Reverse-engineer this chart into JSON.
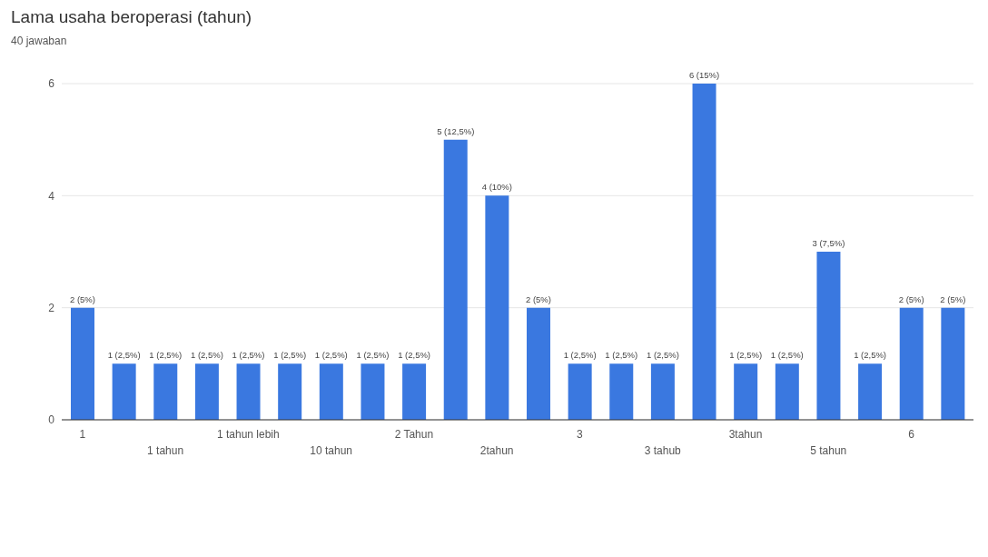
{
  "chart_data": {
    "type": "bar",
    "title": "Lama usaha beroperasi (tahun)",
    "subtitle": "40 jawaban",
    "categories": [
      "1",
      null,
      "1 tahun",
      null,
      "1 tahun lebih",
      null,
      "10 tahun",
      null,
      "2 Tahun",
      null,
      "2tahun",
      null,
      "3",
      null,
      "3 tahub",
      null,
      "3tahun",
      null,
      "5 tahun",
      null,
      "6",
      null
    ],
    "values": [
      2,
      1,
      1,
      1,
      1,
      1,
      1,
      1,
      1,
      5,
      4,
      2,
      1,
      1,
      1,
      6,
      1,
      1,
      3,
      1,
      2,
      2
    ],
    "value_labels": [
      "2 (5%)",
      "1 (2,5%)",
      "1 (2,5%)",
      "1 (2,5%)",
      "1 (2,5%)",
      "1 (2,5%)",
      "1 (2,5%)",
      "1 (2,5%)",
      "1 (2,5%)",
      "5 (12,5%)",
      "4 (10%)",
      "2 (5%)",
      "1 (2,5%)",
      "1 (2,5%)",
      "1 (2,5%)",
      "6 (15%)",
      "1 (2,5%)",
      "1 (2,5%)",
      "3 (7,5%)",
      "1 (2,5%)",
      "2 (5%)",
      "2 (5%)"
    ],
    "color": "#3a78e0",
    "ylim": [
      0,
      6
    ],
    "yticks": [
      0,
      2,
      4,
      6
    ],
    "grid": "y",
    "legend": false
  }
}
